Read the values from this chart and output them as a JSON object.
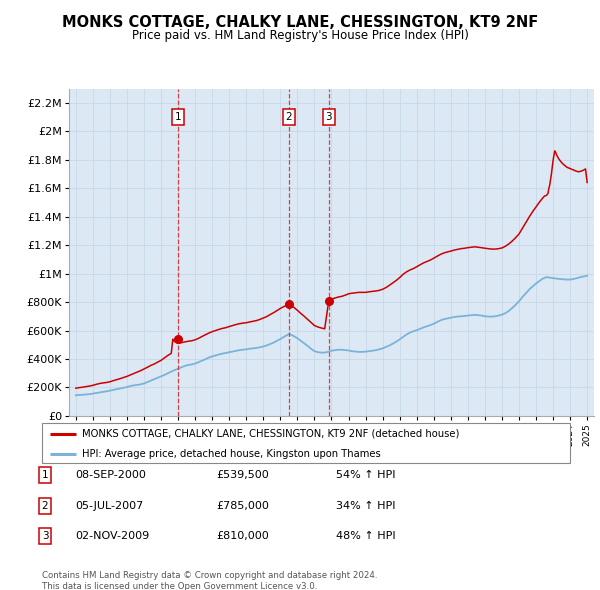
{
  "title": "MONKS COTTAGE, CHALKY LANE, CHESSINGTON, KT9 2NF",
  "subtitle": "Price paid vs. HM Land Registry's House Price Index (HPI)",
  "legend_line1": "MONKS COTTAGE, CHALKY LANE, CHESSINGTON, KT9 2NF (detached house)",
  "legend_line2": "HPI: Average price, detached house, Kingston upon Thames",
  "purchases": [
    {
      "num": 1,
      "date": "08-SEP-2000",
      "price": "£539,500",
      "pct": "54%",
      "year": 2001.0
    },
    {
      "num": 2,
      "date": "05-JUL-2007",
      "price": "£785,000",
      "pct": "34%",
      "year": 2007.5
    },
    {
      "num": 3,
      "date": "02-NOV-2009",
      "price": "£810,000",
      "pct": "48%",
      "year": 2009.85
    }
  ],
  "purchase_marker_vals": [
    539500,
    785000,
    810000
  ],
  "footer1": "Contains HM Land Registry data © Crown copyright and database right 2024.",
  "footer2": "This data is licensed under the Open Government Licence v3.0.",
  "red_color": "#cc0000",
  "blue_color": "#7ab3d8",
  "background_color": "#dce9f5",
  "ylim": [
    0,
    2300000
  ],
  "xlim_start": 1994.6,
  "xlim_end": 2025.4,
  "hpi_data": [
    [
      1995.0,
      145000
    ],
    [
      1995.1,
      146000
    ],
    [
      1995.2,
      147000
    ],
    [
      1995.3,
      148000
    ],
    [
      1995.4,
      149000
    ],
    [
      1995.5,
      150000
    ],
    [
      1995.6,
      151000
    ],
    [
      1995.7,
      152000
    ],
    [
      1995.8,
      153000
    ],
    [
      1995.9,
      155000
    ],
    [
      1996.0,
      157000
    ],
    [
      1996.1,
      159000
    ],
    [
      1996.2,
      161000
    ],
    [
      1996.3,
      163000
    ],
    [
      1996.4,
      165000
    ],
    [
      1996.5,
      167000
    ],
    [
      1996.6,
      169000
    ],
    [
      1996.7,
      171000
    ],
    [
      1996.8,
      173000
    ],
    [
      1996.9,
      175000
    ],
    [
      1997.0,
      178000
    ],
    [
      1997.2,
      183000
    ],
    [
      1997.4,
      188000
    ],
    [
      1997.6,
      193000
    ],
    [
      1997.8,
      198000
    ],
    [
      1998.0,
      203000
    ],
    [
      1998.2,
      210000
    ],
    [
      1998.4,
      215000
    ],
    [
      1998.6,
      218000
    ],
    [
      1998.8,
      222000
    ],
    [
      1999.0,
      228000
    ],
    [
      1999.2,
      238000
    ],
    [
      1999.4,
      248000
    ],
    [
      1999.6,
      258000
    ],
    [
      1999.8,
      268000
    ],
    [
      2000.0,
      278000
    ],
    [
      2000.2,
      288000
    ],
    [
      2000.4,
      300000
    ],
    [
      2000.6,
      312000
    ],
    [
      2000.8,
      322000
    ],
    [
      2001.0,
      332000
    ],
    [
      2001.2,
      342000
    ],
    [
      2001.4,
      352000
    ],
    [
      2001.6,
      358000
    ],
    [
      2001.8,
      362000
    ],
    [
      2002.0,
      368000
    ],
    [
      2002.2,
      378000
    ],
    [
      2002.4,
      388000
    ],
    [
      2002.6,
      398000
    ],
    [
      2002.8,
      410000
    ],
    [
      2003.0,
      418000
    ],
    [
      2003.2,
      425000
    ],
    [
      2003.4,
      432000
    ],
    [
      2003.6,
      438000
    ],
    [
      2003.8,
      442000
    ],
    [
      2004.0,
      448000
    ],
    [
      2004.2,
      452000
    ],
    [
      2004.4,
      458000
    ],
    [
      2004.6,
      462000
    ],
    [
      2004.8,
      465000
    ],
    [
      2005.0,
      468000
    ],
    [
      2005.2,
      472000
    ],
    [
      2005.4,
      475000
    ],
    [
      2005.6,
      478000
    ],
    [
      2005.8,
      482000
    ],
    [
      2006.0,
      488000
    ],
    [
      2006.2,
      495000
    ],
    [
      2006.4,
      505000
    ],
    [
      2006.6,
      515000
    ],
    [
      2006.8,
      528000
    ],
    [
      2007.0,
      540000
    ],
    [
      2007.2,
      555000
    ],
    [
      2007.4,
      568000
    ],
    [
      2007.5,
      575000
    ],
    [
      2007.6,
      572000
    ],
    [
      2007.8,
      560000
    ],
    [
      2008.0,
      545000
    ],
    [
      2008.2,
      528000
    ],
    [
      2008.4,
      510000
    ],
    [
      2008.6,
      492000
    ],
    [
      2008.8,
      472000
    ],
    [
      2009.0,
      455000
    ],
    [
      2009.2,
      448000
    ],
    [
      2009.4,
      445000
    ],
    [
      2009.6,
      445000
    ],
    [
      2009.8,
      450000
    ],
    [
      2010.0,
      458000
    ],
    [
      2010.2,
      462000
    ],
    [
      2010.4,
      465000
    ],
    [
      2010.6,
      465000
    ],
    [
      2010.8,
      463000
    ],
    [
      2011.0,
      460000
    ],
    [
      2011.2,
      455000
    ],
    [
      2011.4,
      452000
    ],
    [
      2011.6,
      450000
    ],
    [
      2011.8,
      450000
    ],
    [
      2012.0,
      452000
    ],
    [
      2012.2,
      455000
    ],
    [
      2012.4,
      458000
    ],
    [
      2012.6,
      462000
    ],
    [
      2012.8,
      468000
    ],
    [
      2013.0,
      475000
    ],
    [
      2013.2,
      485000
    ],
    [
      2013.4,
      495000
    ],
    [
      2013.6,
      508000
    ],
    [
      2013.8,
      522000
    ],
    [
      2014.0,
      538000
    ],
    [
      2014.2,
      555000
    ],
    [
      2014.4,
      572000
    ],
    [
      2014.6,
      585000
    ],
    [
      2014.8,
      595000
    ],
    [
      2015.0,
      602000
    ],
    [
      2015.2,
      612000
    ],
    [
      2015.4,
      622000
    ],
    [
      2015.6,
      630000
    ],
    [
      2015.8,
      638000
    ],
    [
      2016.0,
      648000
    ],
    [
      2016.2,
      660000
    ],
    [
      2016.4,
      672000
    ],
    [
      2016.6,
      680000
    ],
    [
      2016.8,
      685000
    ],
    [
      2017.0,
      690000
    ],
    [
      2017.2,
      695000
    ],
    [
      2017.4,
      698000
    ],
    [
      2017.6,
      700000
    ],
    [
      2017.8,
      702000
    ],
    [
      2018.0,
      705000
    ],
    [
      2018.2,
      708000
    ],
    [
      2018.4,
      710000
    ],
    [
      2018.6,
      708000
    ],
    [
      2018.8,
      705000
    ],
    [
      2019.0,
      700000
    ],
    [
      2019.2,
      698000
    ],
    [
      2019.4,
      698000
    ],
    [
      2019.6,
      700000
    ],
    [
      2019.8,
      705000
    ],
    [
      2020.0,
      712000
    ],
    [
      2020.2,
      722000
    ],
    [
      2020.4,
      738000
    ],
    [
      2020.6,
      758000
    ],
    [
      2020.8,
      780000
    ],
    [
      2021.0,
      805000
    ],
    [
      2021.2,
      835000
    ],
    [
      2021.4,
      862000
    ],
    [
      2021.6,
      888000
    ],
    [
      2021.8,
      910000
    ],
    [
      2022.0,
      930000
    ],
    [
      2022.2,
      948000
    ],
    [
      2022.4,
      965000
    ],
    [
      2022.6,
      975000
    ],
    [
      2022.8,
      972000
    ],
    [
      2023.0,
      968000
    ],
    [
      2023.2,
      965000
    ],
    [
      2023.4,
      962000
    ],
    [
      2023.6,
      960000
    ],
    [
      2023.8,
      958000
    ],
    [
      2024.0,
      958000
    ],
    [
      2024.2,
      962000
    ],
    [
      2024.4,
      968000
    ],
    [
      2024.6,
      975000
    ],
    [
      2024.8,
      980000
    ],
    [
      2025.0,
      985000
    ]
  ],
  "red_data": [
    [
      1995.0,
      195000
    ],
    [
      1995.1,
      197000
    ],
    [
      1995.2,
      199000
    ],
    [
      1995.4,
      202000
    ],
    [
      1995.6,
      206000
    ],
    [
      1995.8,
      210000
    ],
    [
      1996.0,
      215000
    ],
    [
      1996.2,
      222000
    ],
    [
      1996.4,
      228000
    ],
    [
      1996.6,
      232000
    ],
    [
      1996.8,
      235000
    ],
    [
      1997.0,
      240000
    ],
    [
      1997.2,
      248000
    ],
    [
      1997.4,
      255000
    ],
    [
      1997.6,
      262000
    ],
    [
      1997.8,
      270000
    ],
    [
      1998.0,
      278000
    ],
    [
      1998.2,
      288000
    ],
    [
      1998.4,
      298000
    ],
    [
      1998.6,
      308000
    ],
    [
      1998.8,
      318000
    ],
    [
      1999.0,
      330000
    ],
    [
      1999.2,
      342000
    ],
    [
      1999.4,
      355000
    ],
    [
      1999.6,
      365000
    ],
    [
      1999.8,
      378000
    ],
    [
      2000.0,
      390000
    ],
    [
      2000.2,
      408000
    ],
    [
      2000.4,
      425000
    ],
    [
      2000.6,
      440000
    ],
    [
      2000.69,
      539500
    ],
    [
      2000.8,
      522000
    ],
    [
      2001.0,
      510000
    ],
    [
      2001.2,
      515000
    ],
    [
      2001.4,
      520000
    ],
    [
      2001.6,
      525000
    ],
    [
      2001.8,
      528000
    ],
    [
      2002.0,
      535000
    ],
    [
      2002.2,
      545000
    ],
    [
      2002.4,
      558000
    ],
    [
      2002.6,
      570000
    ],
    [
      2002.8,
      582000
    ],
    [
      2003.0,
      592000
    ],
    [
      2003.2,
      600000
    ],
    [
      2003.4,
      608000
    ],
    [
      2003.6,
      615000
    ],
    [
      2003.8,
      620000
    ],
    [
      2004.0,
      628000
    ],
    [
      2004.2,
      635000
    ],
    [
      2004.4,
      642000
    ],
    [
      2004.6,
      648000
    ],
    [
      2004.8,
      652000
    ],
    [
      2005.0,
      655000
    ],
    [
      2005.2,
      660000
    ],
    [
      2005.4,
      665000
    ],
    [
      2005.6,
      670000
    ],
    [
      2005.8,
      678000
    ],
    [
      2006.0,
      688000
    ],
    [
      2006.2,
      698000
    ],
    [
      2006.4,
      712000
    ],
    [
      2006.6,
      725000
    ],
    [
      2006.8,
      740000
    ],
    [
      2007.0,
      755000
    ],
    [
      2007.2,
      768000
    ],
    [
      2007.4,
      778000
    ],
    [
      2007.5,
      785000
    ],
    [
      2007.6,
      778000
    ],
    [
      2007.8,
      762000
    ],
    [
      2008.0,
      742000
    ],
    [
      2008.2,
      720000
    ],
    [
      2008.4,
      700000
    ],
    [
      2008.6,
      678000
    ],
    [
      2008.8,
      655000
    ],
    [
      2009.0,
      635000
    ],
    [
      2009.2,
      625000
    ],
    [
      2009.4,
      618000
    ],
    [
      2009.6,
      612000
    ],
    [
      2009.84,
      810000
    ],
    [
      2010.0,
      820000
    ],
    [
      2010.1,
      825000
    ],
    [
      2010.2,
      828000
    ],
    [
      2010.3,
      832000
    ],
    [
      2010.4,
      835000
    ],
    [
      2010.5,
      838000
    ],
    [
      2010.6,
      840000
    ],
    [
      2010.8,
      848000
    ],
    [
      2011.0,
      858000
    ],
    [
      2011.2,
      862000
    ],
    [
      2011.4,
      865000
    ],
    [
      2011.6,
      868000
    ],
    [
      2011.8,
      868000
    ],
    [
      2012.0,
      868000
    ],
    [
      2012.2,
      872000
    ],
    [
      2012.4,
      875000
    ],
    [
      2012.6,
      878000
    ],
    [
      2012.8,
      882000
    ],
    [
      2013.0,
      890000
    ],
    [
      2013.2,
      902000
    ],
    [
      2013.4,
      918000
    ],
    [
      2013.6,
      935000
    ],
    [
      2013.8,
      952000
    ],
    [
      2014.0,
      972000
    ],
    [
      2014.2,
      995000
    ],
    [
      2014.4,
      1012000
    ],
    [
      2014.6,
      1025000
    ],
    [
      2014.8,
      1035000
    ],
    [
      2015.0,
      1048000
    ],
    [
      2015.2,
      1062000
    ],
    [
      2015.4,
      1075000
    ],
    [
      2015.6,
      1085000
    ],
    [
      2015.8,
      1095000
    ],
    [
      2016.0,
      1108000
    ],
    [
      2016.2,
      1122000
    ],
    [
      2016.4,
      1135000
    ],
    [
      2016.6,
      1145000
    ],
    [
      2016.8,
      1152000
    ],
    [
      2017.0,
      1158000
    ],
    [
      2017.2,
      1165000
    ],
    [
      2017.4,
      1170000
    ],
    [
      2017.6,
      1175000
    ],
    [
      2017.8,
      1178000
    ],
    [
      2018.0,
      1182000
    ],
    [
      2018.2,
      1185000
    ],
    [
      2018.4,
      1188000
    ],
    [
      2018.6,
      1185000
    ],
    [
      2018.8,
      1182000
    ],
    [
      2019.0,
      1178000
    ],
    [
      2019.2,
      1175000
    ],
    [
      2019.4,
      1172000
    ],
    [
      2019.6,
      1172000
    ],
    [
      2019.8,
      1175000
    ],
    [
      2020.0,
      1180000
    ],
    [
      2020.2,
      1192000
    ],
    [
      2020.4,
      1208000
    ],
    [
      2020.6,
      1228000
    ],
    [
      2020.8,
      1252000
    ],
    [
      2021.0,
      1278000
    ],
    [
      2021.2,
      1318000
    ],
    [
      2021.4,
      1358000
    ],
    [
      2021.6,
      1398000
    ],
    [
      2021.8,
      1435000
    ],
    [
      2022.0,
      1468000
    ],
    [
      2022.2,
      1502000
    ],
    [
      2022.4,
      1532000
    ],
    [
      2022.5,
      1545000
    ],
    [
      2022.6,
      1548000
    ],
    [
      2022.7,
      1562000
    ],
    [
      2022.75,
      1598000
    ],
    [
      2022.8,
      1620000
    ],
    [
      2022.85,
      1658000
    ],
    [
      2022.9,
      1698000
    ],
    [
      2022.95,
      1748000
    ],
    [
      2023.0,
      1795000
    ],
    [
      2023.05,
      1832000
    ],
    [
      2023.1,
      1862000
    ],
    [
      2023.15,
      1852000
    ],
    [
      2023.2,
      1835000
    ],
    [
      2023.3,
      1812000
    ],
    [
      2023.4,
      1795000
    ],
    [
      2023.5,
      1780000
    ],
    [
      2023.6,
      1768000
    ],
    [
      2023.7,
      1758000
    ],
    [
      2023.8,
      1748000
    ],
    [
      2023.9,
      1742000
    ],
    [
      2024.0,
      1738000
    ],
    [
      2024.1,
      1732000
    ],
    [
      2024.2,
      1728000
    ],
    [
      2024.3,
      1722000
    ],
    [
      2024.4,
      1718000
    ],
    [
      2024.5,
      1715000
    ],
    [
      2024.6,
      1718000
    ],
    [
      2024.7,
      1722000
    ],
    [
      2024.8,
      1728000
    ],
    [
      2024.9,
      1735000
    ],
    [
      2025.0,
      1640000
    ]
  ]
}
